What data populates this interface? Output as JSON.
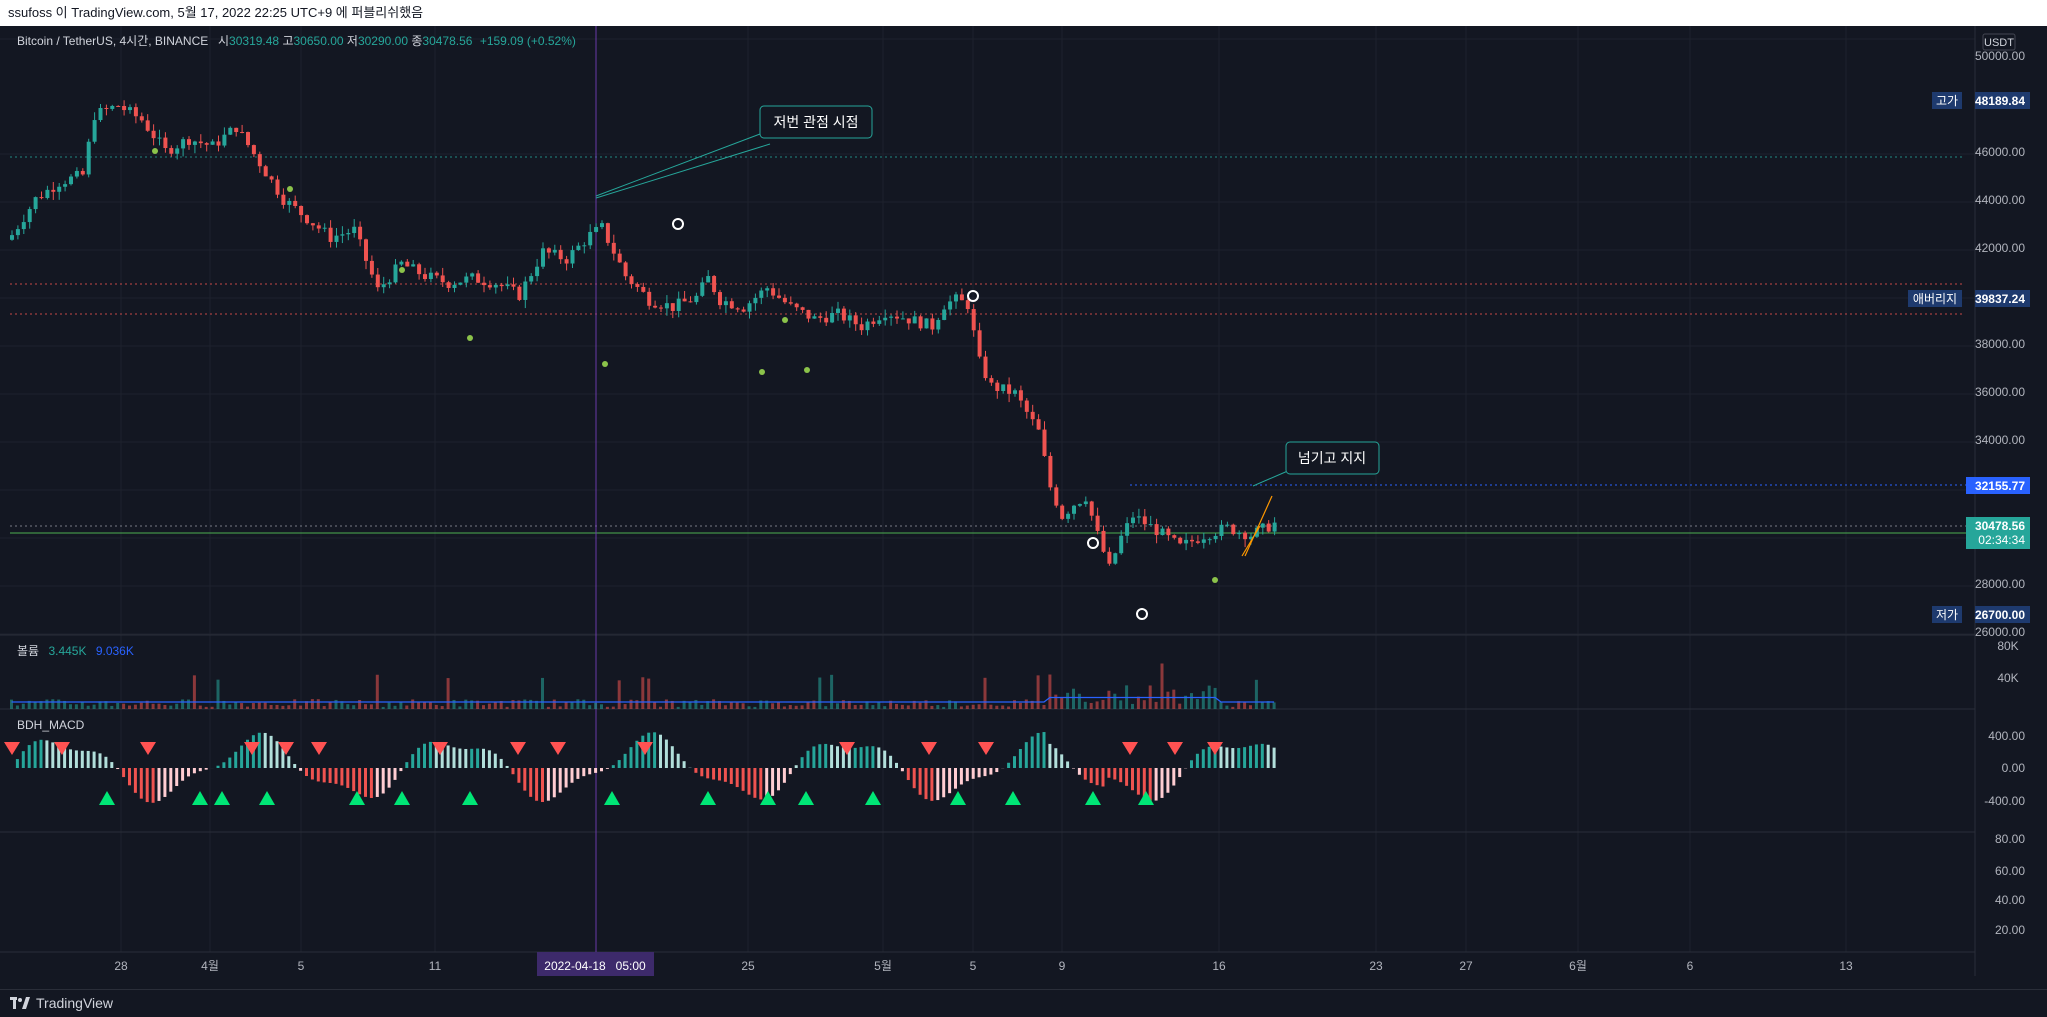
{
  "header": {
    "publish_text": "ssufoss 이 TradingView.com, 5월 17, 2022 22:25 UTC+9 에 퍼블리쉬했음"
  },
  "footer": {
    "brand": "TradingView",
    "logo_icon": "tradingview-logo-icon"
  },
  "colors": {
    "background": "#131722",
    "grid": "#1e222d",
    "up": "#26a69a",
    "down": "#ef5350",
    "volume_ma": "#2962ff",
    "last_price": "#26a69a",
    "marker_dot": "#8bc34a",
    "vertical_line": "#6a3aa8"
  },
  "main": {
    "symbol_title": "Bitcoin / TetherUS, 4시간, BINANCE",
    "ohlc": {
      "open_label": "시",
      "open": "30319.48",
      "high_label": "고",
      "high": "30650.00",
      "low_label": "저",
      "low": "30290.00",
      "close_label": "종",
      "close": "30478.56",
      "change": "+159.09 (+0.52%)"
    },
    "currency": "USDT",
    "price_ticks": [
      "50000.00",
      "46000.00",
      "44000.00",
      "42000.00",
      "38000.00",
      "36000.00",
      "34000.00",
      "28000.00",
      "26000.00"
    ],
    "labels": {
      "high_tag": "고가",
      "high_value": "48189.84",
      "leverage_tag": "애버리지",
      "leverage_value": "39837.24",
      "level_value": "32155.77",
      "last_price": "30478.56",
      "countdown": "02:34:34",
      "low_tag": "저가",
      "low_value": "26700.00"
    },
    "annotations": {
      "callout_1": "저번 관점 시점",
      "callout_2": "넘기고 지지"
    }
  },
  "volume": {
    "title": "볼륨",
    "value1": "3.445K",
    "value2": "9.036K",
    "ticks": [
      "80K",
      "40K"
    ]
  },
  "macd": {
    "title": "BDH_MACD",
    "ticks": [
      "400.00",
      "0.00",
      "-400.00"
    ]
  },
  "oscillator": {
    "ticks": [
      "80.00",
      "60.00",
      "40.00",
      "20.00"
    ]
  },
  "time_axis": {
    "labels": [
      "28",
      "4월",
      "5",
      "11",
      "25",
      "5월",
      "5",
      "9",
      "16",
      "23",
      "27",
      "6월",
      "6",
      "13"
    ],
    "crosshair_label": "2022-04-18   05:00"
  },
  "chart_data": {
    "type": "candlestick",
    "symbol": "BTCUSDT",
    "interval": "4시간",
    "ylim": [
      26000,
      50000
    ],
    "close_path": [
      [
        0,
        42500
      ],
      [
        4,
        44000
      ],
      [
        8,
        44700
      ],
      [
        12,
        45000
      ],
      [
        14,
        47500
      ],
      [
        18,
        47900
      ],
      [
        22,
        47300
      ],
      [
        26,
        46000
      ],
      [
        30,
        46500
      ],
      [
        34,
        46200
      ],
      [
        38,
        47000
      ],
      [
        42,
        45500
      ],
      [
        46,
        44000
      ],
      [
        50,
        43200
      ],
      [
        54,
        42400
      ],
      [
        58,
        42700
      ],
      [
        62,
        40200
      ],
      [
        66,
        41300
      ],
      [
        70,
        40800
      ],
      [
        74,
        40500
      ],
      [
        78,
        40700
      ],
      [
        82,
        40500
      ],
      [
        86,
        40000
      ],
      [
        90,
        41800
      ],
      [
        94,
        41500
      ],
      [
        98,
        42500
      ],
      [
        100,
        42800
      ],
      [
        104,
        40800
      ],
      [
        108,
        39800
      ],
      [
        112,
        39500
      ],
      [
        116,
        39900
      ],
      [
        118,
        40700
      ],
      [
        120,
        39800
      ],
      [
        124,
        39500
      ],
      [
        128,
        40300
      ],
      [
        132,
        39500
      ],
      [
        136,
        39000
      ],
      [
        140,
        39200
      ],
      [
        144,
        38700
      ],
      [
        148,
        39300
      ],
      [
        152,
        39000
      ],
      [
        156,
        38700
      ],
      [
        158,
        39600
      ],
      [
        160,
        39800
      ],
      [
        162,
        39600
      ],
      [
        164,
        37200
      ],
      [
        166,
        36200
      ],
      [
        170,
        35900
      ],
      [
        174,
        34300
      ],
      [
        176,
        32000
      ],
      [
        178,
        30800
      ],
      [
        180,
        31300
      ],
      [
        182,
        31600
      ],
      [
        184,
        30000
      ],
      [
        186,
        28600
      ],
      [
        188,
        29900
      ],
      [
        190,
        30800
      ],
      [
        194,
        30200
      ],
      [
        198,
        29500
      ],
      [
        202,
        30000
      ],
      [
        206,
        30300
      ],
      [
        210,
        30000
      ],
      [
        214,
        30478
      ]
    ]
  }
}
